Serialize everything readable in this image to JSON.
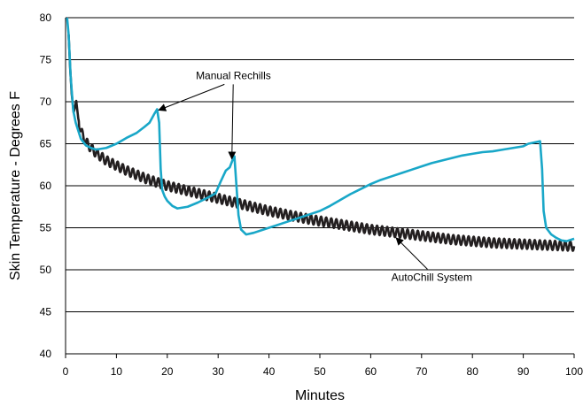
{
  "chart_data": {
    "type": "line",
    "xlabel": "Minutes",
    "ylabel": "Skin Temperature - Degrees F",
    "xlim": [
      0,
      100
    ],
    "ylim": [
      40,
      80
    ],
    "xticks": [
      0,
      10,
      20,
      30,
      40,
      50,
      60,
      70,
      80,
      90,
      100
    ],
    "yticks": [
      40,
      45,
      50,
      55,
      60,
      65,
      70,
      75,
      80
    ],
    "grid": "horizontal",
    "colors": {
      "manual": "#19a7c8",
      "autochill": "#231f20",
      "grid": "#000000"
    },
    "series": [
      {
        "id": "manual",
        "points": [
          [
            0.3,
            80
          ],
          [
            0.6,
            78
          ],
          [
            1.0,
            73
          ],
          [
            1.5,
            69
          ],
          [
            2.0,
            67.5
          ],
          [
            3.0,
            65.6
          ],
          [
            4.0,
            64.8
          ],
          [
            5.0,
            64.5
          ],
          [
            6.0,
            64.3
          ],
          [
            8.0,
            64.5
          ],
          [
            10.0,
            65.0
          ],
          [
            12.0,
            65.7
          ],
          [
            14.0,
            66.3
          ],
          [
            15.5,
            67.0
          ],
          [
            16.5,
            67.5
          ],
          [
            17.5,
            68.6
          ],
          [
            18.0,
            69.1
          ],
          [
            18.4,
            67.5
          ],
          [
            18.7,
            62
          ],
          [
            19.0,
            59.5
          ],
          [
            19.5,
            58.7
          ],
          [
            20.0,
            58.2
          ],
          [
            21.0,
            57.6
          ],
          [
            22.0,
            57.3
          ],
          [
            24.0,
            57.5
          ],
          [
            26.0,
            58.0
          ],
          [
            28.0,
            58.6
          ],
          [
            29.5,
            59.1
          ],
          [
            30.5,
            60.5
          ],
          [
            31.5,
            61.8
          ],
          [
            32.3,
            62.2
          ],
          [
            32.8,
            63.0
          ],
          [
            33.2,
            63.5
          ],
          [
            33.6,
            60
          ],
          [
            34.0,
            56.5
          ],
          [
            34.5,
            54.8
          ],
          [
            35.5,
            54.2
          ],
          [
            37.0,
            54.4
          ],
          [
            40.0,
            55.0
          ],
          [
            43.0,
            55.6
          ],
          [
            46.0,
            56.2
          ],
          [
            48.0,
            56.6
          ],
          [
            50.0,
            57.0
          ],
          [
            52.0,
            57.6
          ],
          [
            54.0,
            58.3
          ],
          [
            56.0,
            59.0
          ],
          [
            58.0,
            59.6
          ],
          [
            60.0,
            60.2
          ],
          [
            62.0,
            60.7
          ],
          [
            64.0,
            61.1
          ],
          [
            66.0,
            61.5
          ],
          [
            68.0,
            61.9
          ],
          [
            70.0,
            62.3
          ],
          [
            72.0,
            62.7
          ],
          [
            74.0,
            63.0
          ],
          [
            76.0,
            63.3
          ],
          [
            78.0,
            63.6
          ],
          [
            80.0,
            63.8
          ],
          [
            82.0,
            64.0
          ],
          [
            84.0,
            64.1
          ],
          [
            86.0,
            64.3
          ],
          [
            88.0,
            64.5
          ],
          [
            90.0,
            64.7
          ],
          [
            91.0,
            65.0
          ],
          [
            92.5,
            65.2
          ],
          [
            93.3,
            65.3
          ],
          [
            93.7,
            62
          ],
          [
            94.0,
            57.0
          ],
          [
            94.5,
            55.0
          ],
          [
            95.5,
            54.2
          ],
          [
            96.5,
            53.8
          ],
          [
            97.5,
            53.5
          ],
          [
            98.5,
            53.4
          ],
          [
            99.5,
            53.6
          ],
          [
            100.0,
            53.7
          ]
        ]
      },
      {
        "id": "autochill",
        "oscillation_amplitude": 0.55,
        "oscillation_period": 1.0,
        "points": [
          [
            0.6,
            78
          ],
          [
            0.9,
            74
          ],
          [
            1.2,
            71
          ],
          [
            1.6,
            68.7
          ],
          [
            1.9,
            69.5
          ],
          [
            2.1,
            70.1
          ],
          [
            2.5,
            68.0
          ],
          [
            3.0,
            66.5
          ],
          [
            4.0,
            65.2
          ],
          [
            5.0,
            64.5
          ],
          [
            6.0,
            63.9
          ],
          [
            8.0,
            63.0
          ],
          [
            10.0,
            62.4
          ],
          [
            12.0,
            61.8
          ],
          [
            14.0,
            61.3
          ],
          [
            16.0,
            60.8
          ],
          [
            18.0,
            60.4
          ],
          [
            20.0,
            60.0
          ],
          [
            22.0,
            59.7
          ],
          [
            24.0,
            59.4
          ],
          [
            26.0,
            59.1
          ],
          [
            28.0,
            58.8
          ],
          [
            30.0,
            58.5
          ],
          [
            32.0,
            58.2
          ],
          [
            34.0,
            57.9
          ],
          [
            36.0,
            57.6
          ],
          [
            38.0,
            57.3
          ],
          [
            40.0,
            57.0
          ],
          [
            44.0,
            56.5
          ],
          [
            48.0,
            56.0
          ],
          [
            52.0,
            55.6
          ],
          [
            56.0,
            55.2
          ],
          [
            60.0,
            54.8
          ],
          [
            64.0,
            54.5
          ],
          [
            68.0,
            54.2
          ],
          [
            72.0,
            53.9
          ],
          [
            76.0,
            53.6
          ],
          [
            80.0,
            53.4
          ],
          [
            84.0,
            53.2
          ],
          [
            88.0,
            53.1
          ],
          [
            92.0,
            53.0
          ],
          [
            96.0,
            52.9
          ],
          [
            100.0,
            52.8
          ]
        ]
      }
    ],
    "annotations": [
      {
        "text": "Manual Rechills",
        "anchor": [
          33,
          72.7
        ],
        "arrows_to": [
          [
            18.3,
            69.0
          ],
          [
            32.7,
            63.2
          ]
        ]
      },
      {
        "text": "AutoChill System",
        "anchor": [
          72,
          48.7
        ],
        "arrows_to": [
          [
            65.0,
            53.8
          ]
        ]
      }
    ]
  }
}
